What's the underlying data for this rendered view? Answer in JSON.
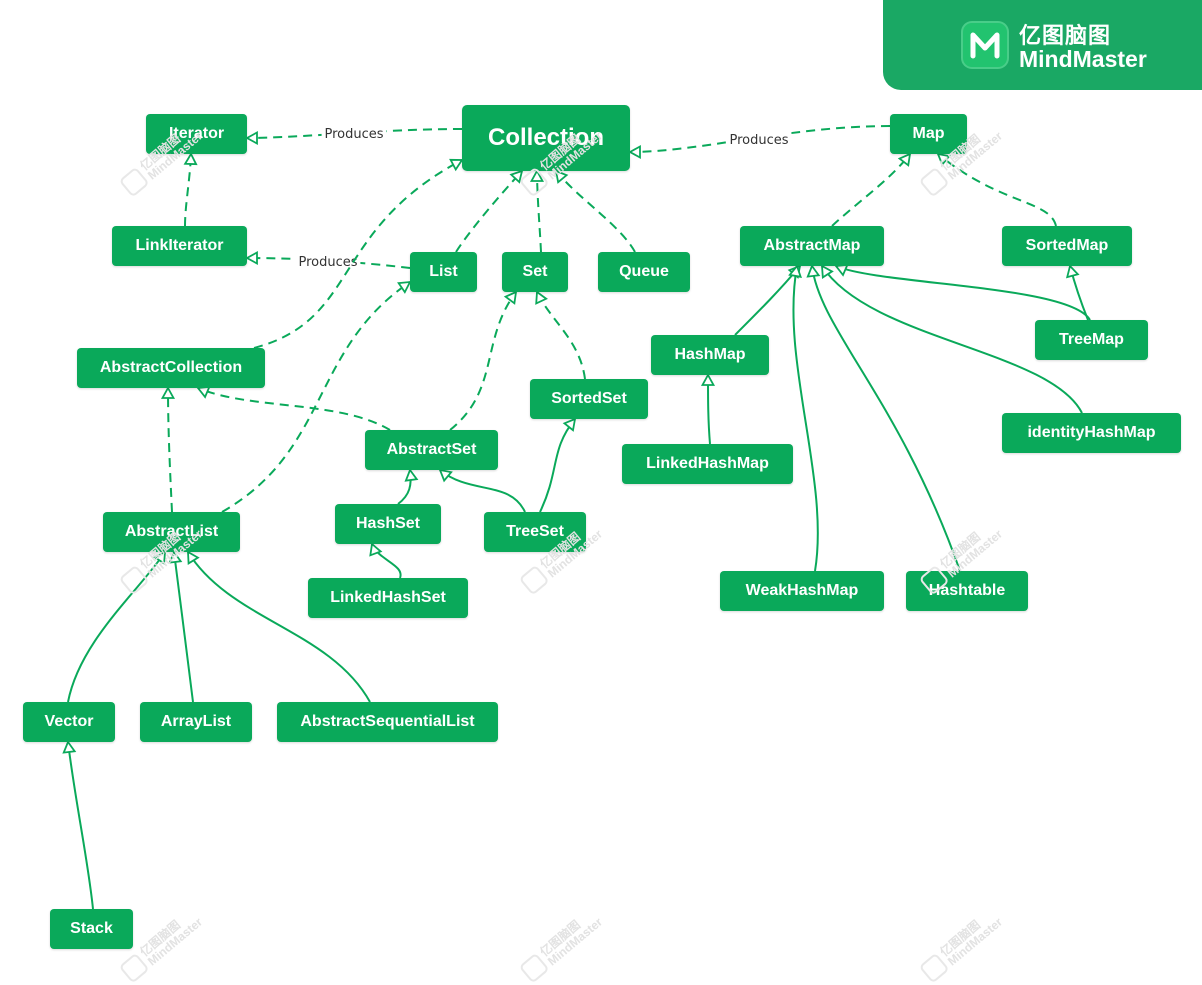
{
  "brand": {
    "line1": "亿图脑图",
    "line2": "MindMaster",
    "background": "#1aa864"
  },
  "watermark": {
    "line1": "亿图脑图",
    "line2": "MindMaster"
  },
  "colors": {
    "node": "#0aa95a",
    "node_text": "#ffffff",
    "edge": "#0aa95a",
    "label_text": "#333333"
  },
  "nodes": [
    {
      "id": "collection",
      "label": "Collection"
    },
    {
      "id": "iterator",
      "label": "Iterator"
    },
    {
      "id": "linkiterator",
      "label": "LinkIterator"
    },
    {
      "id": "map",
      "label": "Map"
    },
    {
      "id": "list",
      "label": "List"
    },
    {
      "id": "set",
      "label": "Set"
    },
    {
      "id": "queue",
      "label": "Queue"
    },
    {
      "id": "abstractcollection",
      "label": "AbstractCollection"
    },
    {
      "id": "sortedset",
      "label": "SortedSet"
    },
    {
      "id": "abstractset",
      "label": "AbstractSet"
    },
    {
      "id": "hashset",
      "label": "HashSet"
    },
    {
      "id": "treeset",
      "label": "TreeSet"
    },
    {
      "id": "linkedhashset",
      "label": "LinkedHashSet"
    },
    {
      "id": "abstractlist",
      "label": "AbstractList"
    },
    {
      "id": "vector",
      "label": "Vector"
    },
    {
      "id": "arraylist",
      "label": "ArrayList"
    },
    {
      "id": "abstractsequentiallist",
      "label": "AbstractSequentialList"
    },
    {
      "id": "stack",
      "label": "Stack"
    },
    {
      "id": "abstractmap",
      "label": "AbstractMap"
    },
    {
      "id": "sortedmap",
      "label": "SortedMap"
    },
    {
      "id": "hashmap",
      "label": "HashMap"
    },
    {
      "id": "treemap",
      "label": "TreeMap"
    },
    {
      "id": "linkedhashmap",
      "label": "LinkedHashMap"
    },
    {
      "id": "identityhashmap",
      "label": "identityHashMap"
    },
    {
      "id": "weakhashmap",
      "label": "WeakHashMap"
    },
    {
      "id": "hashtable",
      "label": "Hashtable"
    }
  ],
  "edges": [
    {
      "from": "collection",
      "to": "iterator",
      "style": "dashed",
      "label": "Produces"
    },
    {
      "from": "map",
      "to": "collection",
      "style": "dashed",
      "label": "Produces"
    },
    {
      "from": "list",
      "to": "linkiterator",
      "style": "dashed",
      "label": "Produces"
    },
    {
      "from": "linkiterator",
      "to": "iterator",
      "style": "dashed",
      "label": ""
    },
    {
      "from": "list",
      "to": "collection",
      "style": "dashed",
      "label": ""
    },
    {
      "from": "set",
      "to": "collection",
      "style": "dashed",
      "label": ""
    },
    {
      "from": "queue",
      "to": "collection",
      "style": "dashed",
      "label": ""
    },
    {
      "from": "abstractcollection",
      "to": "collection",
      "style": "dashed",
      "label": ""
    },
    {
      "from": "abstractlist",
      "to": "abstractcollection",
      "style": "dashed",
      "label": ""
    },
    {
      "from": "abstractlist",
      "to": "list",
      "style": "dashed",
      "label": ""
    },
    {
      "from": "abstractset",
      "to": "abstractcollection",
      "style": "dashed",
      "label": ""
    },
    {
      "from": "abstractset",
      "to": "set",
      "style": "dashed",
      "label": ""
    },
    {
      "from": "sortedset",
      "to": "set",
      "style": "dashed",
      "label": ""
    },
    {
      "from": "hashset",
      "to": "abstractset",
      "style": "solid",
      "label": ""
    },
    {
      "from": "treeset",
      "to": "abstractset",
      "style": "solid",
      "label": ""
    },
    {
      "from": "treeset",
      "to": "sortedset",
      "style": "solid",
      "label": ""
    },
    {
      "from": "linkedhashset",
      "to": "hashset",
      "style": "solid",
      "label": ""
    },
    {
      "from": "vector",
      "to": "abstractlist",
      "style": "solid",
      "label": ""
    },
    {
      "from": "arraylist",
      "to": "abstractlist",
      "style": "solid",
      "label": ""
    },
    {
      "from": "abstractsequentiallist",
      "to": "abstractlist",
      "style": "solid",
      "label": ""
    },
    {
      "from": "stack",
      "to": "vector",
      "style": "solid",
      "label": ""
    },
    {
      "from": "abstractmap",
      "to": "map",
      "style": "dashed",
      "label": ""
    },
    {
      "from": "sortedmap",
      "to": "map",
      "style": "dashed",
      "label": ""
    },
    {
      "from": "hashmap",
      "to": "abstractmap",
      "style": "solid",
      "label": ""
    },
    {
      "from": "treemap",
      "to": "abstractmap",
      "style": "solid",
      "label": ""
    },
    {
      "from": "treemap",
      "to": "sortedmap",
      "style": "solid",
      "label": ""
    },
    {
      "from": "identityhashmap",
      "to": "abstractmap",
      "style": "solid",
      "label": ""
    },
    {
      "from": "weakhashmap",
      "to": "abstractmap",
      "style": "solid",
      "label": ""
    },
    {
      "from": "hashtable",
      "to": "abstractmap",
      "style": "solid",
      "label": ""
    },
    {
      "from": "linkedhashmap",
      "to": "hashmap",
      "style": "solid",
      "label": ""
    }
  ]
}
